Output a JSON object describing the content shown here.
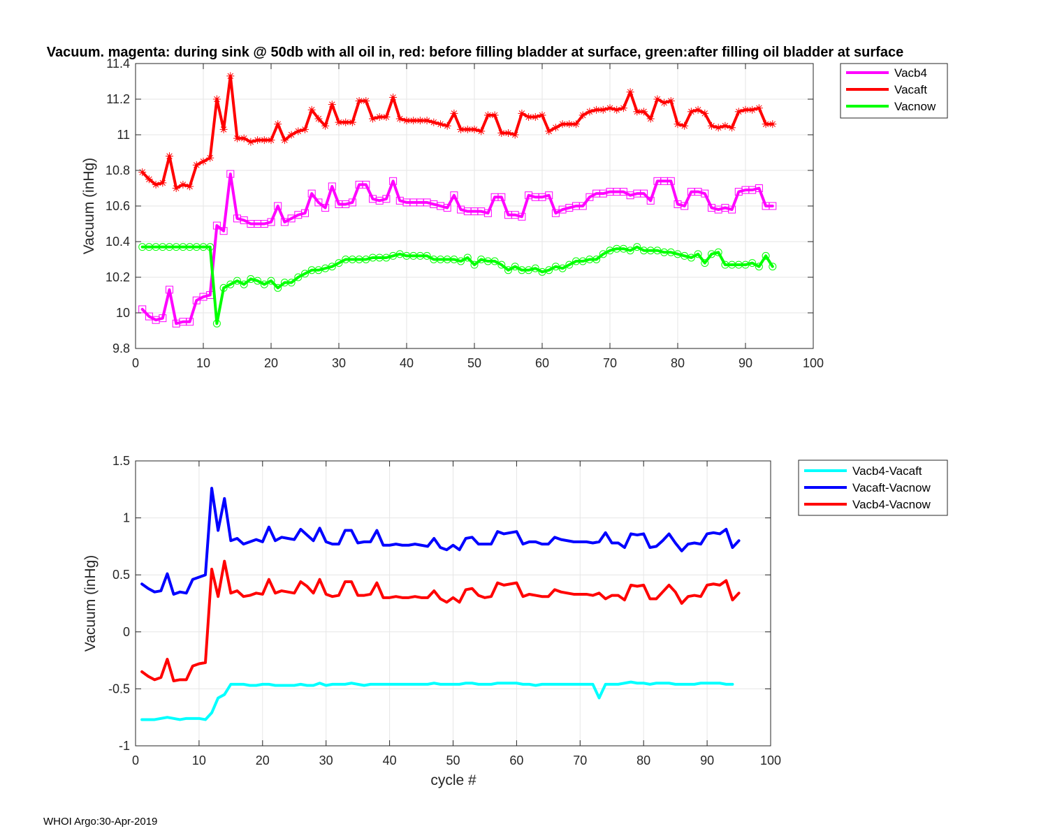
{
  "footer": "WHOI Argo:30-Apr-2019",
  "colors": {
    "Vacb4": "#ff00ff",
    "Vacaft": "#ff0000",
    "Vacnow": "#00ff00",
    "Vacb4-Vacaft": "#00ffff",
    "Vacaft-Vacnow": "#0000ff",
    "Vacb4-Vacnow": "#ff0000"
  },
  "chart_data": [
    {
      "type": "line",
      "title": "Vacuum. magenta: during sink @ 50db with all oil in, red: before filling bladder at surface, green:after filling oil bladder at surface",
      "xlabel": "",
      "ylabel": "Vacuum (inHg)",
      "xlim": [
        0,
        100
      ],
      "ylim": [
        9.8,
        11.4
      ],
      "xticks": [
        "0",
        "10",
        "20",
        "30",
        "40",
        "50",
        "60",
        "70",
        "80",
        "90",
        "100"
      ],
      "yticks": [
        "9.8",
        "10",
        "10.2",
        "10.4",
        "10.6",
        "10.8",
        "11",
        "11.2",
        "11.4"
      ],
      "grid": true,
      "legend": "outside-top-right",
      "x_start": 1,
      "series": [
        {
          "name": "Vacb4",
          "color": "#ff00ff",
          "marker": "square",
          "values": [
            10.02,
            9.98,
            9.96,
            9.97,
            10.13,
            9.94,
            9.95,
            9.95,
            10.07,
            10.09,
            10.1,
            10.49,
            10.46,
            10.78,
            10.53,
            10.52,
            10.5,
            10.5,
            10.5,
            10.51,
            10.6,
            10.51,
            10.53,
            10.55,
            10.56,
            10.67,
            10.62,
            10.59,
            10.71,
            10.61,
            10.61,
            10.62,
            10.72,
            10.72,
            10.64,
            10.63,
            10.64,
            10.74,
            10.63,
            10.62,
            10.62,
            10.62,
            10.62,
            10.61,
            10.6,
            10.59,
            10.66,
            10.58,
            10.57,
            10.57,
            10.57,
            10.56,
            10.65,
            10.65,
            10.55,
            10.55,
            10.54,
            10.66,
            10.65,
            10.65,
            10.66,
            10.56,
            10.58,
            10.59,
            10.6,
            10.6,
            10.65,
            10.67,
            10.67,
            10.68,
            10.68,
            10.68,
            10.66,
            10.67,
            10.67,
            10.63,
            10.74,
            10.74,
            10.74,
            10.61,
            10.6,
            10.68,
            10.68,
            10.67,
            10.59,
            10.58,
            10.59,
            10.58,
            10.68,
            10.69,
            10.69,
            10.7,
            10.6,
            10.6
          ]
        },
        {
          "name": "Vacaft",
          "color": "#ff0000",
          "marker": "asterisk",
          "values": [
            10.79,
            10.75,
            10.72,
            10.73,
            10.88,
            10.7,
            10.72,
            10.71,
            10.83,
            10.85,
            10.87,
            11.2,
            11.03,
            11.33,
            10.98,
            10.98,
            10.96,
            10.97,
            10.97,
            10.97,
            11.06,
            10.97,
            11.0,
            11.02,
            11.03,
            11.14,
            11.09,
            11.05,
            11.17,
            11.07,
            11.07,
            11.07,
            11.19,
            11.19,
            11.09,
            11.1,
            11.1,
            11.21,
            11.09,
            11.08,
            11.08,
            11.08,
            11.08,
            11.07,
            11.06,
            11.05,
            11.12,
            11.03,
            11.03,
            11.03,
            11.02,
            11.11,
            11.11,
            11.01,
            11.01,
            11.0,
            11.12,
            11.1,
            11.1,
            11.11,
            11.02,
            11.04,
            11.06,
            11.06,
            11.06,
            11.11,
            11.13,
            11.14,
            11.14,
            11.15,
            11.14,
            11.15,
            11.24,
            11.13,
            11.13,
            11.09,
            11.2,
            11.18,
            11.19,
            11.06,
            11.05,
            11.13,
            11.14,
            11.12,
            11.05,
            11.04,
            11.05,
            11.04,
            11.13,
            11.14,
            11.14,
            11.15,
            11.06,
            11.06
          ]
        },
        {
          "name": "Vacnow",
          "color": "#00ff00",
          "marker": "circle",
          "values": [
            10.37,
            10.37,
            10.37,
            10.37,
            10.37,
            10.37,
            10.37,
            10.37,
            10.37,
            10.37,
            10.37,
            9.94,
            10.14,
            10.16,
            10.18,
            10.16,
            10.19,
            10.18,
            10.16,
            10.18,
            10.14,
            10.17,
            10.17,
            10.2,
            10.22,
            10.24,
            10.24,
            10.25,
            10.26,
            10.28,
            10.3,
            10.3,
            10.3,
            10.3,
            10.31,
            10.31,
            10.31,
            10.32,
            10.33,
            10.32,
            10.32,
            10.32,
            10.32,
            10.3,
            10.3,
            10.3,
            10.3,
            10.29,
            10.31,
            10.27,
            10.3,
            10.29,
            10.29,
            10.27,
            10.24,
            10.26,
            10.24,
            10.24,
            10.25,
            10.23,
            10.24,
            10.26,
            10.25,
            10.27,
            10.29,
            10.29,
            10.3,
            10.3,
            10.33,
            10.35,
            10.36,
            10.36,
            10.35,
            10.37,
            10.35,
            10.35,
            10.35,
            10.34,
            10.34,
            10.33,
            10.32,
            10.31,
            10.33,
            10.28,
            10.33,
            10.34,
            10.27,
            10.27,
            10.27,
            10.27,
            10.28,
            10.26,
            10.32,
            10.26
          ]
        }
      ]
    },
    {
      "type": "line",
      "title": "",
      "xlabel": "cycle #",
      "ylabel": "Vacuum (inHg)",
      "xlim": [
        0,
        100
      ],
      "ylim": [
        -1,
        1.5
      ],
      "xticks": [
        "0",
        "10",
        "20",
        "30",
        "40",
        "50",
        "60",
        "70",
        "80",
        "90",
        "100"
      ],
      "yticks": [
        "-1",
        "-0.5",
        "0",
        "0.5",
        "1",
        "1.5"
      ],
      "grid": true,
      "legend": "outside-top-right",
      "x_start": 1,
      "series": [
        {
          "name": "Vacb4-Vacaft",
          "color": "#00ffff",
          "values": [
            -0.77,
            -0.77,
            -0.77,
            -0.76,
            -0.75,
            -0.76,
            -0.77,
            -0.76,
            -0.76,
            -0.76,
            -0.77,
            -0.71,
            -0.58,
            -0.55,
            -0.46,
            -0.46,
            -0.46,
            -0.47,
            -0.47,
            -0.46,
            -0.46,
            -0.47,
            -0.47,
            -0.47,
            -0.47,
            -0.46,
            -0.47,
            -0.47,
            -0.45,
            -0.47,
            -0.46,
            -0.46,
            -0.46,
            -0.45,
            -0.46,
            -0.47,
            -0.46,
            -0.46,
            -0.46,
            -0.46,
            -0.46,
            -0.46,
            -0.46,
            -0.46,
            -0.46,
            -0.46,
            -0.45,
            -0.46,
            -0.46,
            -0.46,
            -0.46,
            -0.45,
            -0.45,
            -0.46,
            -0.46,
            -0.46,
            -0.45,
            -0.45,
            -0.45,
            -0.45,
            -0.46,
            -0.46,
            -0.47,
            -0.46,
            -0.46,
            -0.46,
            -0.46,
            -0.46,
            -0.46,
            -0.46,
            -0.46,
            -0.46,
            -0.58,
            -0.46,
            -0.46,
            -0.46,
            -0.45,
            -0.44,
            -0.45,
            -0.45,
            -0.46,
            -0.45,
            -0.45,
            -0.45,
            -0.46,
            -0.46,
            -0.46,
            -0.46,
            -0.45,
            -0.45,
            -0.45,
            -0.45,
            -0.46,
            -0.46
          ]
        },
        {
          "name": "Vacaft-Vacnow",
          "color": "#0000ff",
          "values": [
            0.42,
            0.38,
            0.35,
            0.36,
            0.51,
            0.33,
            0.35,
            0.34,
            0.46,
            0.48,
            0.5,
            1.26,
            0.89,
            1.17,
            0.8,
            0.82,
            0.77,
            0.79,
            0.81,
            0.79,
            0.92,
            0.8,
            0.83,
            0.82,
            0.81,
            0.9,
            0.85,
            0.8,
            0.91,
            0.79,
            0.77,
            0.77,
            0.89,
            0.89,
            0.78,
            0.79,
            0.79,
            0.89,
            0.76,
            0.76,
            0.77,
            0.76,
            0.76,
            0.77,
            0.76,
            0.75,
            0.82,
            0.74,
            0.72,
            0.76,
            0.72,
            0.82,
            0.83,
            0.77,
            0.77,
            0.77,
            0.88,
            0.86,
            0.87,
            0.88,
            0.77,
            0.79,
            0.79,
            0.77,
            0.77,
            0.83,
            0.81,
            0.8,
            0.79,
            0.79,
            0.79,
            0.78,
            0.79,
            0.87,
            0.78,
            0.78,
            0.74,
            0.86,
            0.85,
            0.86,
            0.74,
            0.75,
            0.8,
            0.86,
            0.78,
            0.71,
            0.77,
            0.78,
            0.77,
            0.86,
            0.87,
            0.86,
            0.9,
            0.74,
            0.8
          ]
        },
        {
          "name": "Vacb4-Vacnow",
          "color": "#ff0000",
          "values": [
            -0.35,
            -0.39,
            -0.42,
            -0.4,
            -0.24,
            -0.43,
            -0.42,
            -0.42,
            -0.3,
            -0.28,
            -0.27,
            0.55,
            0.31,
            0.62,
            0.34,
            0.36,
            0.31,
            0.32,
            0.34,
            0.33,
            0.46,
            0.34,
            0.36,
            0.35,
            0.34,
            0.44,
            0.4,
            0.34,
            0.46,
            0.33,
            0.31,
            0.32,
            0.44,
            0.44,
            0.32,
            0.32,
            0.33,
            0.43,
            0.3,
            0.3,
            0.31,
            0.3,
            0.3,
            0.31,
            0.3,
            0.3,
            0.36,
            0.29,
            0.26,
            0.3,
            0.26,
            0.37,
            0.38,
            0.32,
            0.3,
            0.31,
            0.43,
            0.41,
            0.42,
            0.43,
            0.31,
            0.33,
            0.32,
            0.31,
            0.31,
            0.37,
            0.35,
            0.34,
            0.33,
            0.33,
            0.33,
            0.32,
            0.34,
            0.29,
            0.32,
            0.32,
            0.28,
            0.41,
            0.4,
            0.41,
            0.29,
            0.29,
            0.35,
            0.41,
            0.35,
            0.25,
            0.31,
            0.32,
            0.31,
            0.41,
            0.42,
            0.41,
            0.45,
            0.28,
            0.34
          ]
        }
      ]
    }
  ]
}
